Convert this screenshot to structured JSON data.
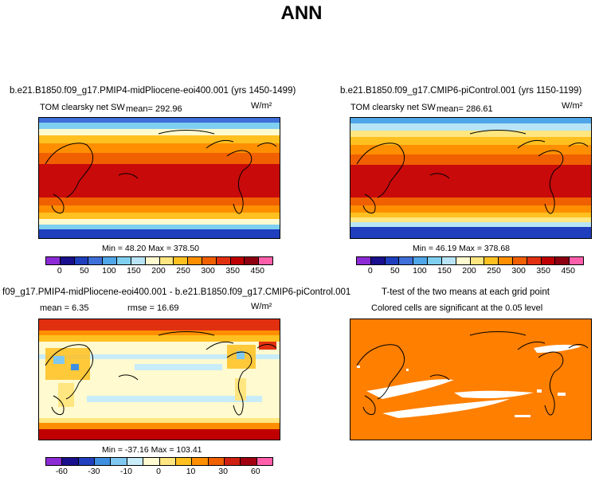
{
  "figure_title": "ANN",
  "colors": {
    "map_border": "#000000",
    "ocean_orange": "#ff7f00",
    "coast": "#000000"
  },
  "chart_data": [
    {
      "type": "heatmap",
      "title": "b.e21.B1850.f09_g17.PMIP4-midPliocene-eoi400.001 (yrs 1450-1499)",
      "variable": "TOM clearsky net SW",
      "mean_label": "mean= 292.96",
      "units": "W/m²",
      "min_max_label": "Min =   48.20 Max = 378.50",
      "stats": {
        "mean": 292.96,
        "min": 48.2,
        "max": 378.5
      },
      "colorbar_ticks": [
        "0",
        "50",
        "100",
        "150",
        "200",
        "250",
        "300",
        "350",
        "450"
      ],
      "colorbar_colors": [
        "#8c2bd6",
        "#1a0f8c",
        "#1f3fbf",
        "#3f6fd9",
        "#4fa6e8",
        "#7fd0f0",
        "#b8e4f6",
        "#fffacf",
        "#ffe680",
        "#ffc020",
        "#ff8f00",
        "#f05f00",
        "#e03010",
        "#c00000",
        "#8c0010",
        "#ff5faa"
      ]
    },
    {
      "type": "heatmap",
      "title": "b.e21.B1850.f09_g17.CMIP6-piControl.001 (yrs 1150-1199)",
      "variable": "TOM clearsky net SW",
      "mean_label": "mean= 286.61",
      "units": "W/m²",
      "min_max_label": "Min =   46.19 Max = 378.68",
      "stats": {
        "mean": 286.61,
        "min": 46.19,
        "max": 378.68
      },
      "colorbar_ticks": [
        "0",
        "50",
        "100",
        "150",
        "200",
        "250",
        "300",
        "350",
        "450"
      ],
      "colorbar_colors": [
        "#8c2bd6",
        "#1a0f8c",
        "#1f3fbf",
        "#3f6fd9",
        "#4fa6e8",
        "#7fd0f0",
        "#b8e4f6",
        "#fffacf",
        "#ffe680",
        "#ffc020",
        "#ff8f00",
        "#f05f00",
        "#e03010",
        "#c00000",
        "#8c0010",
        "#ff5faa"
      ]
    },
    {
      "type": "heatmap",
      "title": "f09_g17.PMIP4-midPliocene-eoi400.001 - b.e21.B1850.f09_g17.CMIP6-piControl.001",
      "mean_label": "mean =   6.35",
      "rmse_label": "rmse =  16.69",
      "units": "W/m²",
      "min_max_label": "Min = -37.16 Max = 103.41",
      "stats": {
        "mean": 6.35,
        "rmse": 16.69,
        "min": -37.16,
        "max": 103.41
      },
      "colorbar_ticks": [
        "-60",
        "-30",
        "-10",
        "0",
        "10",
        "30",
        "60"
      ],
      "colorbar_colors": [
        "#8c2bd6",
        "#1a0f8c",
        "#1f3fbf",
        "#3f8fe0",
        "#7fc8f0",
        "#c8ecf8",
        "#fffacf",
        "#ffe680",
        "#ffc020",
        "#ff8f00",
        "#f05f00",
        "#d02010",
        "#a00010",
        "#ff5faa"
      ]
    },
    {
      "type": "heatmap",
      "title": "T-test of the two means at each grid point",
      "subtitle": "Colored cells are significant at the 0.05 level",
      "significant_color": "#ff7f00",
      "insignificant_color": "#ffffff"
    }
  ]
}
